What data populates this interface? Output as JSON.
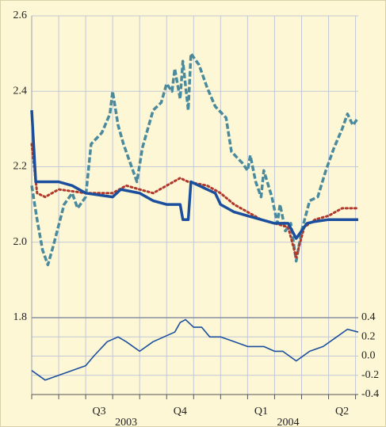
{
  "chart_data": [
    {
      "type": "line",
      "xlim": [
        0,
        12.1
      ],
      "xticks": [
        0,
        1,
        2,
        3,
        4,
        5,
        6,
        7,
        8,
        9,
        10,
        11,
        12
      ],
      "ylim": [
        1.8,
        2.6
      ],
      "yticks": [
        2.6,
        2.4,
        2.2,
        {
          "value": 2,
          "label": "2.0"
        },
        1.8
      ],
      "grid": true,
      "series": [
        {
          "color": "#4a8a9c",
          "style": "dashed",
          "x": [
            0,
            0.2,
            0.4,
            0.6,
            0.8,
            1.2,
            1.5,
            1.7,
            2,
            2.2,
            2.6,
            2.9,
            3,
            3.2,
            3.4,
            3.6,
            3.9,
            4.1,
            4.5,
            4.8,
            5,
            5.2,
            5.3,
            5.5,
            5.6,
            5.8,
            5.9,
            6.2,
            6.5,
            6.8,
            7.2,
            7.4,
            7.8,
            8,
            8.1,
            8.3,
            8.5,
            8.6,
            8.9,
            9.1,
            9.2,
            9.4,
            9.6,
            9.8,
            10,
            10.3,
            10.6,
            10.9,
            11.2,
            11.5,
            11.7,
            11.9,
            12.1
          ],
          "values": [
            2.15,
            2.06,
            1.98,
            1.94,
            1.99,
            2.1,
            2.13,
            2.09,
            2.12,
            2.26,
            2.29,
            2.34,
            2.4,
            2.31,
            2.26,
            2.22,
            2.16,
            2.25,
            2.35,
            2.37,
            2.42,
            2.4,
            2.46,
            2.38,
            2.48,
            2.35,
            2.5,
            2.47,
            2.41,
            2.36,
            2.33,
            2.24,
            2.21,
            2.19,
            2.23,
            2.16,
            2.12,
            2.19,
            2.12,
            2.05,
            2.1,
            2.03,
            2.05,
            1.95,
            2.03,
            2.11,
            2.12,
            2.19,
            2.25,
            2.3,
            2.34,
            2.31,
            2.33
          ]
        },
        {
          "color": "#b0392c",
          "style": "dotted",
          "x": [
            0,
            0.2,
            0.5,
            1,
            2,
            3,
            3.5,
            4,
            4.5,
            5,
            5.5,
            5.8,
            6.5,
            7,
            7.5,
            8,
            8.5,
            9,
            9.5,
            9.8,
            10.1,
            10.5,
            11,
            11.5,
            12.1
          ],
          "values": [
            2.26,
            2.13,
            2.12,
            2.14,
            2.13,
            2.13,
            2.15,
            2.14,
            2.13,
            2.15,
            2.17,
            2.16,
            2.15,
            2.13,
            2.1,
            2.08,
            2.06,
            2.05,
            2.04,
            1.96,
            2.04,
            2.06,
            2.07,
            2.09,
            2.09
          ]
        },
        {
          "color": "#1b4f9e",
          "style": "solid",
          "x": [
            0,
            0.15,
            0.5,
            1,
            1.5,
            2,
            3,
            3.3,
            4,
            4.5,
            5,
            5.5,
            5.6,
            5.8,
            5.9,
            6.2,
            6.8,
            7,
            7.5,
            8,
            8.5,
            9,
            9.5,
            9.8,
            10.2,
            10.5,
            11,
            12.1
          ],
          "values": [
            2.35,
            2.16,
            2.16,
            2.16,
            2.15,
            2.13,
            2.12,
            2.14,
            2.13,
            2.11,
            2.1,
            2.1,
            2.06,
            2.06,
            2.16,
            2.15,
            2.13,
            2.1,
            2.08,
            2.07,
            2.06,
            2.05,
            2.05,
            2.01,
            2.05,
            2.055,
            2.06,
            2.06
          ]
        }
      ]
    },
    {
      "type": "line",
      "xlim": [
        0,
        12.1
      ],
      "xticks": [
        0,
        1,
        2,
        3,
        4,
        5,
        6,
        7,
        8,
        9,
        10,
        11,
        12
      ],
      "xtick_labels": [
        {
          "value": 2,
          "label": "Q3"
        },
        {
          "value": 5,
          "label": "Q4"
        },
        {
          "value": 8,
          "label": "Q1"
        },
        {
          "value": 11,
          "label": "Q2"
        }
      ],
      "year_labels": [
        {
          "value": 3.5,
          "label": "2003"
        },
        {
          "value": 9.5,
          "label": "2004"
        }
      ],
      "ylim": [
        -0.4,
        0.4
      ],
      "yticks": [
        0.4,
        0.2,
        {
          "value": 0,
          "label": "0.0"
        },
        -0.2,
        -0.4
      ],
      "yaxis_side": "right",
      "grid": true,
      "series": [
        {
          "color": "#1b4f9e",
          "style": "solid",
          "x": [
            0,
            0.5,
            1,
            2,
            2.3,
            2.8,
            3.2,
            3.5,
            4,
            4.5,
            5.3,
            5.5,
            5.7,
            6,
            6.3,
            6.6,
            7,
            7.5,
            8,
            8.6,
            9,
            9.3,
            9.8,
            10.3,
            10.8,
            11.2,
            11.7,
            12.1
          ],
          "values": [
            -0.15,
            -0.25,
            -0.2,
            -0.1,
            0,
            0.15,
            0.2,
            0.15,
            0.05,
            0.15,
            0.25,
            0.35,
            0.38,
            0.3,
            0.3,
            0.2,
            0.2,
            0.15,
            0.1,
            0.1,
            0.05,
            0.05,
            -0.05,
            0.05,
            0.1,
            0.18,
            0.28,
            0.25
          ]
        }
      ]
    }
  ]
}
